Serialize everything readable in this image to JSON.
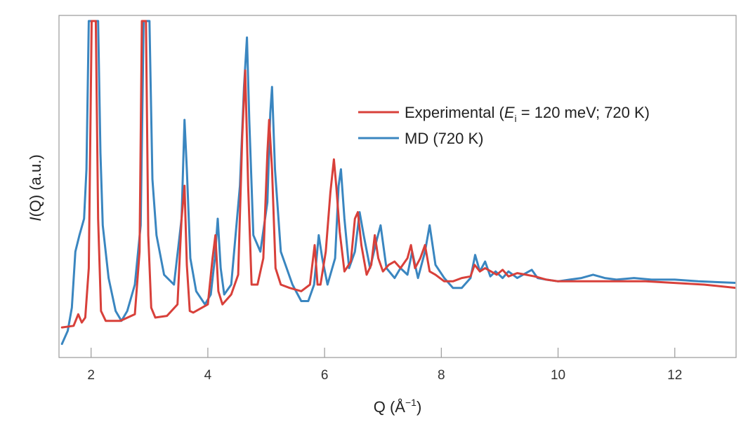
{
  "chart_data": {
    "type": "line",
    "xlabel": "Q (Å",
    "xlabel_sup": "−1",
    "xlabel_close": ")",
    "ylabel_italic": "I",
    "ylabel_rest": "(Q) (a.u.)",
    "xlim": [
      1.45,
      13.05
    ],
    "ylim": [
      0,
      100
    ],
    "y_ticks_shown": false,
    "grid": false,
    "legend_position": "upper-right",
    "x_ticks": [
      2,
      4,
      6,
      8,
      10,
      12
    ],
    "x_tick_labels": [
      "2",
      "4",
      "6",
      "8",
      "10",
      "12"
    ],
    "series": [
      {
        "name": "Experimental (E_i = 120 meV; 720 K)",
        "color": "#d8403a",
        "x": [
          1.5,
          1.7,
          1.78,
          1.84,
          1.9,
          1.96,
          2.01,
          2.05,
          2.08,
          2.12,
          2.17,
          2.25,
          2.5,
          2.75,
          2.83,
          2.87,
          2.9,
          2.94,
          2.98,
          3.03,
          3.1,
          3.3,
          3.48,
          3.55,
          3.6,
          3.64,
          3.69,
          3.75,
          4.0,
          4.08,
          4.13,
          4.18,
          4.25,
          4.4,
          4.52,
          4.59,
          4.64,
          4.69,
          4.75,
          4.85,
          4.95,
          5.02,
          5.05,
          5.1,
          5.16,
          5.25,
          5.4,
          5.6,
          5.75,
          5.83,
          5.88,
          5.93,
          6.02,
          6.1,
          6.16,
          6.2,
          6.26,
          6.34,
          6.45,
          6.52,
          6.57,
          6.63,
          6.72,
          6.8,
          6.86,
          6.92,
          7.0,
          7.1,
          7.2,
          7.3,
          7.42,
          7.48,
          7.55,
          7.64,
          7.72,
          7.8,
          7.9,
          8.05,
          8.2,
          8.35,
          8.5,
          8.57,
          8.66,
          8.75,
          8.85,
          8.95,
          9.05,
          9.15,
          9.3,
          9.45,
          9.6,
          9.8,
          10.0,
          10.2,
          10.5,
          11.0,
          11.5,
          12.0,
          12.5,
          13.05
        ],
        "y": [
          7,
          7.5,
          11,
          8.5,
          10,
          25,
          100,
          100,
          100,
          40,
          12,
          9,
          9,
          11,
          30,
          100,
          100,
          100,
          35,
          13,
          10,
          10.5,
          14,
          40,
          50,
          26,
          12,
          11.5,
          14,
          28,
          35,
          18,
          14,
          17,
          23,
          65,
          85,
          50,
          20,
          20,
          28,
          60,
          70,
          55,
          25,
          20,
          19,
          18,
          20,
          32,
          20,
          20,
          30,
          48,
          58,
          50,
          36,
          24,
          27,
          40,
          42,
          32,
          23,
          26,
          35,
          28,
          24,
          26,
          27,
          25,
          28,
          32,
          25,
          28,
          32,
          24,
          23,
          21,
          21,
          22,
          22.5,
          26,
          24,
          25,
          24,
          23,
          24.5,
          22.5,
          23.5,
          23,
          22.5,
          21.5,
          21,
          21,
          21,
          21,
          21,
          20.5,
          20,
          19
        ]
      },
      {
        "name": "MD (720 K)",
        "color": "#3a86c0",
        "x": [
          1.5,
          1.6,
          1.67,
          1.73,
          1.8,
          1.88,
          1.92,
          1.96,
          2.0,
          2.05,
          2.12,
          2.16,
          2.2,
          2.3,
          2.42,
          2.52,
          2.62,
          2.75,
          2.85,
          2.9,
          2.93,
          2.97,
          3.0,
          3.05,
          3.12,
          3.25,
          3.42,
          3.55,
          3.6,
          3.64,
          3.7,
          3.8,
          3.95,
          4.05,
          4.12,
          4.17,
          4.22,
          4.28,
          4.4,
          4.55,
          4.62,
          4.67,
          4.71,
          4.78,
          4.9,
          5.02,
          5.07,
          5.1,
          5.15,
          5.25,
          5.45,
          5.6,
          5.72,
          5.82,
          5.9,
          5.96,
          6.05,
          6.18,
          6.24,
          6.28,
          6.34,
          6.42,
          6.52,
          6.6,
          6.67,
          6.78,
          6.9,
          6.96,
          7.06,
          7.2,
          7.3,
          7.42,
          7.5,
          7.6,
          7.72,
          7.8,
          7.9,
          8.05,
          8.2,
          8.35,
          8.5,
          8.58,
          8.66,
          8.75,
          8.84,
          8.93,
          9.05,
          9.15,
          9.3,
          9.45,
          9.55,
          9.65,
          9.8,
          10.0,
          10.2,
          10.4,
          10.6,
          10.8,
          11.0,
          11.3,
          11.6,
          12.0,
          12.4,
          13.05
        ],
        "y": [
          2,
          6,
          13,
          30,
          35,
          40,
          55,
          100,
          100,
          100,
          100,
          60,
          38,
          22,
          12,
          9,
          12,
          20,
          38,
          100,
          100,
          100,
          100,
          52,
          35,
          23,
          20,
          40,
          70,
          55,
          28,
          18,
          14,
          17,
          28,
          40,
          25,
          17,
          20,
          50,
          80,
          95,
          70,
          35,
          30,
          45,
          72,
          80,
          55,
          30,
          20,
          15,
          15,
          20,
          35,
          28,
          20,
          28,
          50,
          55,
          40,
          25,
          30,
          42,
          35,
          25,
          34,
          38,
          25,
          22,
          25,
          23,
          30,
          22,
          30,
          38,
          26,
          22,
          19,
          19,
          22,
          29,
          24,
          27,
          22.5,
          24,
          22,
          24,
          22,
          23.5,
          24.5,
          22,
          21.5,
          21,
          21.5,
          22,
          23,
          22,
          21.5,
          22,
          21.5,
          21.5,
          21,
          20.5
        ]
      }
    ],
    "legend": [
      {
        "pre": "Experimental (",
        "italic": "E",
        "sub": "i",
        "post": " = 120 meV; 720 K)",
        "color": "#d8403a"
      },
      {
        "pre": "MD (720 K)",
        "italic": "",
        "sub": "",
        "post": "",
        "color": "#3a86c0"
      }
    ]
  }
}
